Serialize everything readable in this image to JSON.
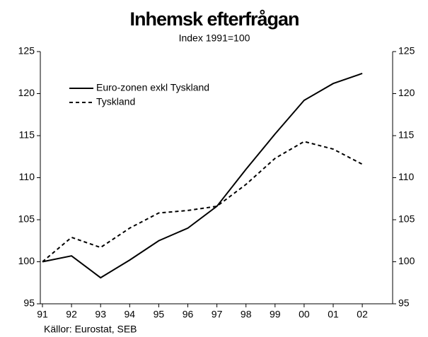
{
  "chart_data": {
    "type": "line",
    "title": "Inhemsk efterfrågan",
    "subtitle": "Index 1991=100",
    "source": "Källor: Eurostat, SEB",
    "categories": [
      "91",
      "92",
      "93",
      "94",
      "95",
      "96",
      "97",
      "98",
      "99",
      "00",
      "01",
      "02"
    ],
    "series": [
      {
        "name": "Euro-zonen exkl Tyskland",
        "color": "#000000",
        "dash": "solid",
        "values": [
          100,
          100.7,
          98.1,
          100.2,
          102.5,
          104.0,
          106.6,
          111.0,
          115.2,
          119.2,
          121.2,
          122.4
        ]
      },
      {
        "name": "Tyskland",
        "color": "#000000",
        "dash": "dashed",
        "values": [
          100,
          102.9,
          101.7,
          104.0,
          105.8,
          106.1,
          106.6,
          109.2,
          112.3,
          114.3,
          113.4,
          111.6
        ]
      }
    ],
    "ylim": [
      95,
      125
    ],
    "yticks": [
      95,
      100,
      105,
      110,
      115,
      120,
      125
    ],
    "grid": false,
    "legend": "upper left"
  }
}
